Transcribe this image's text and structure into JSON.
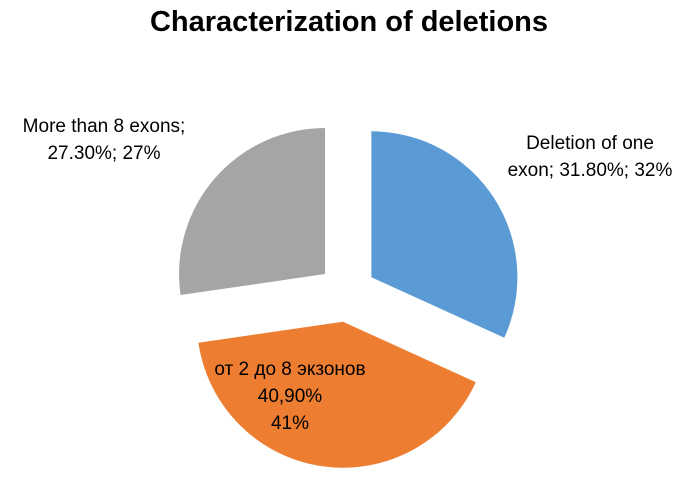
{
  "chart_data": {
    "type": "pie",
    "title": "Characterization of deletions",
    "slices": [
      {
        "name": "Deletion of one exon",
        "value": 31.8,
        "color": "#5B9BD5",
        "label_lines": [
          "Deletion of one",
          "exon; 31.80%; 32%"
        ]
      },
      {
        "name": "от 2 до 8 экзонов",
        "value": 40.9,
        "color": "#ED7D31",
        "label_lines": [
          "от 2 до 8 экзонов",
          "40,90%",
          "41%"
        ]
      },
      {
        "name": "More than 8 exons",
        "value": 27.3,
        "color": "#A5A5A5",
        "label_lines": [
          "More than 8 exons;",
          "27.30%; 27%"
        ]
      }
    ],
    "exploded": true,
    "legend": "none"
  }
}
